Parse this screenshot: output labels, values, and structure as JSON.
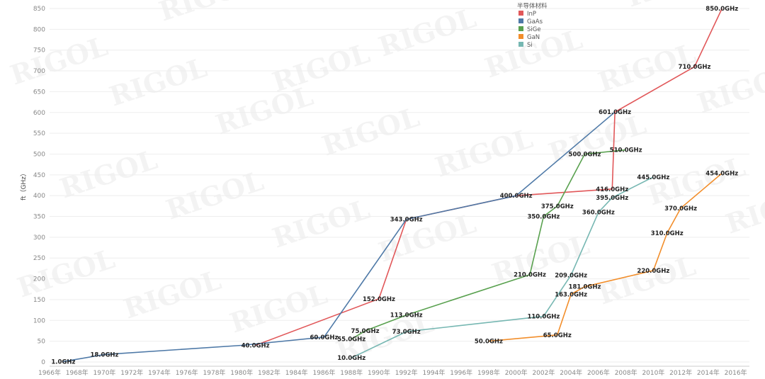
{
  "chart_data": {
    "type": "line",
    "ylabel": "ft（GHz）",
    "xlabel": "",
    "ylim": [
      0,
      850
    ],
    "yticks": [
      0,
      50,
      100,
      150,
      200,
      250,
      300,
      350,
      400,
      450,
      500,
      550,
      600,
      650,
      700,
      750,
      800,
      850
    ],
    "x_categories": [
      "1966年",
      "1968年",
      "1970年",
      "1972年",
      "1974年",
      "1976年",
      "1978年",
      "1980年",
      "1982年",
      "1984年",
      "1986年",
      "1988年",
      "1990年",
      "1992年",
      "1994年",
      "1996年",
      "1998年",
      "2000年",
      "2002年",
      "2004年",
      "2006年",
      "2008年",
      "2010年",
      "2012年",
      "2014年",
      "2016年"
    ],
    "grid": true,
    "legend": {
      "title": "半导体材料",
      "placement": "top-center"
    },
    "series": [
      {
        "name": "InP",
        "color": "#e15759",
        "points": [
          {
            "x": 1981,
            "y": 40,
            "label": "40.0GHz"
          },
          {
            "x": 1990,
            "y": 152,
            "label": "152.0GHz"
          },
          {
            "x": 1992,
            "y": 343,
            "label": "343.0GHz"
          },
          {
            "x": 2000,
            "y": 400,
            "label": "400.0GHz"
          },
          {
            "x": 2007,
            "y": 416,
            "label": "416.0GHz"
          },
          {
            "x": 2007.2,
            "y": 601,
            "label": "601.0GHz"
          },
          {
            "x": 2013,
            "y": 710,
            "label": "710.0GHz"
          },
          {
            "x": 2015,
            "y": 850,
            "label": "850.0GHz"
          }
        ]
      },
      {
        "name": "GaAs",
        "color": "#4e79a7",
        "points": [
          {
            "x": 1967,
            "y": 1,
            "label": "1.0GHz"
          },
          {
            "x": 1970,
            "y": 18,
            "label": "18.0GHz"
          },
          {
            "x": 1980,
            "y": 40,
            "label": ""
          },
          {
            "x": 1986,
            "y": 60,
            "label": "60.0GHz"
          },
          {
            "x": 1992,
            "y": 343,
            "label": ""
          },
          {
            "x": 2000,
            "y": 400,
            "label": ""
          },
          {
            "x": 2007.2,
            "y": 601,
            "label": ""
          }
        ]
      },
      {
        "name": "SiGe",
        "color": "#59a14f",
        "points": [
          {
            "x": 1988,
            "y": 55,
            "label": "55.0GHz"
          },
          {
            "x": 1989,
            "y": 75,
            "label": "75.0GHz"
          },
          {
            "x": 1992,
            "y": 113,
            "label": "113.0GHz"
          },
          {
            "x": 2001,
            "y": 210,
            "label": "210.0GHz"
          },
          {
            "x": 2002,
            "y": 350,
            "label": "350.0GHz"
          },
          {
            "x": 2003,
            "y": 375,
            "label": "375.0GHz"
          },
          {
            "x": 2005,
            "y": 500,
            "label": "500.0GHz"
          },
          {
            "x": 2008,
            "y": 510,
            "label": "510.0GHz"
          }
        ]
      },
      {
        "name": "GaN",
        "color": "#f28e2b",
        "points": [
          {
            "x": 1998,
            "y": 50,
            "label": "50.0GHz"
          },
          {
            "x": 2003,
            "y": 65,
            "label": "65.0GHz"
          },
          {
            "x": 2004,
            "y": 163,
            "label": "163.0GHz"
          },
          {
            "x": 2005,
            "y": 181,
            "label": "181.0GHz"
          },
          {
            "x": 2010,
            "y": 220,
            "label": "220.0GHz"
          },
          {
            "x": 2011,
            "y": 310,
            "label": "310.0GHz"
          },
          {
            "x": 2012,
            "y": 370,
            "label": "370.0GHz"
          },
          {
            "x": 2015,
            "y": 454,
            "label": "454.0GHz"
          }
        ]
      },
      {
        "name": "Si",
        "color": "#76b7b2",
        "points": [
          {
            "x": 1988,
            "y": 10,
            "label": "10.0GHz"
          },
          {
            "x": 1992,
            "y": 73,
            "label": "73.0GHz"
          },
          {
            "x": 2002,
            "y": 110,
            "label": "110.0GHz"
          },
          {
            "x": 2004,
            "y": 209,
            "label": "209.0GHz"
          },
          {
            "x": 2006,
            "y": 360,
            "label": "360.0GHz"
          },
          {
            "x": 2007,
            "y": 395,
            "label": "395.0GHz"
          },
          {
            "x": 2010,
            "y": 445,
            "label": "445.0GHz"
          }
        ]
      }
    ],
    "watermark": "RIGOL"
  }
}
